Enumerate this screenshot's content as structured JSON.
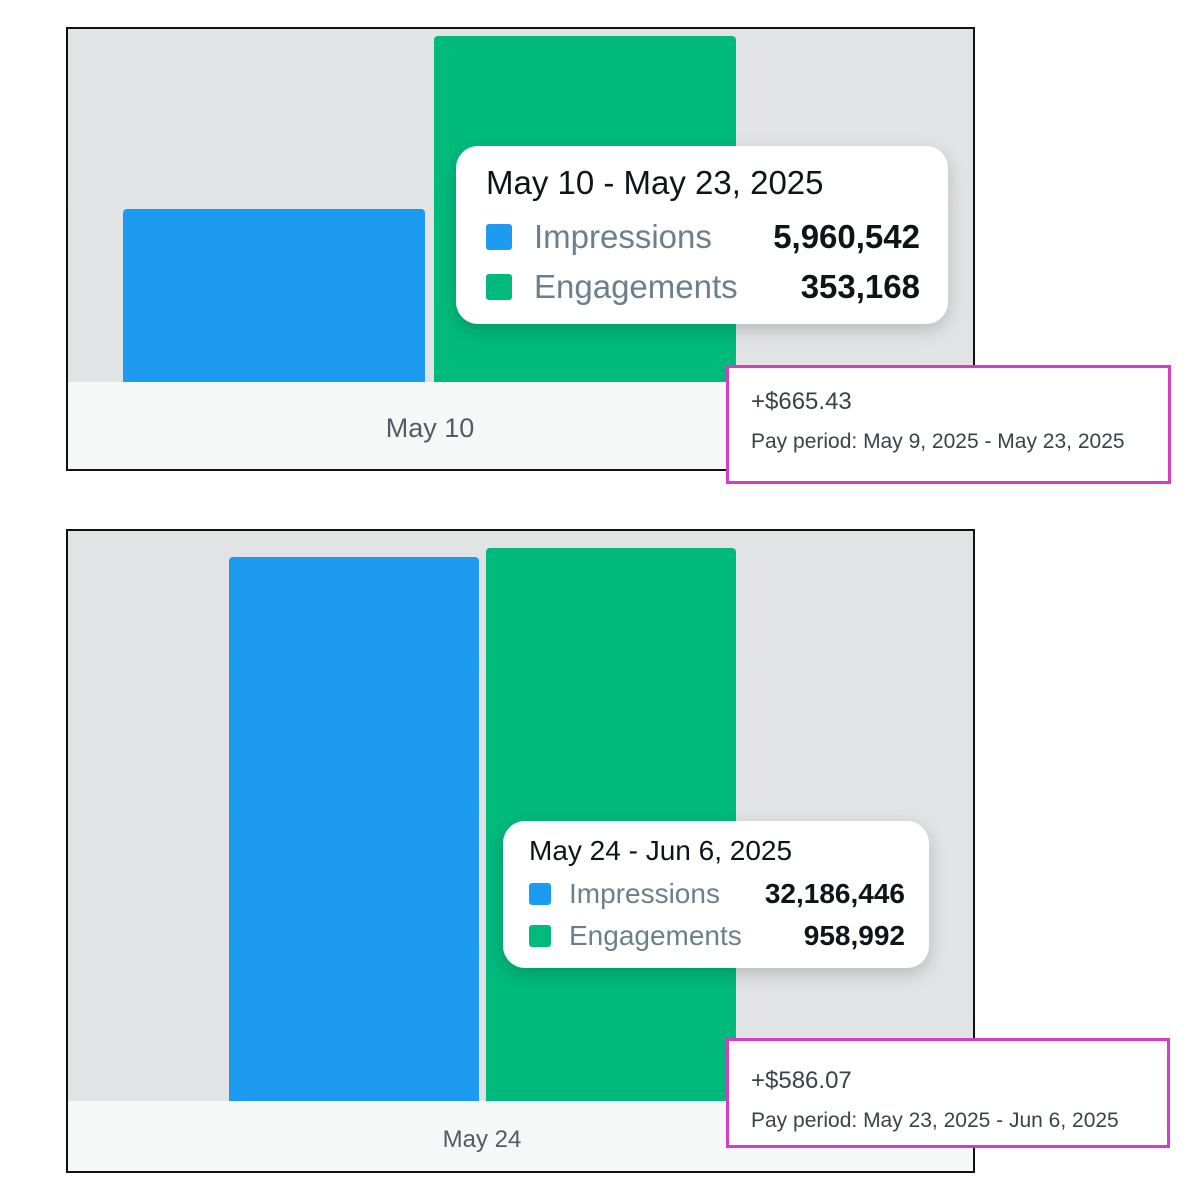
{
  "colors": {
    "impressions": "#1d9bf0",
    "engagements": "#00ba7c",
    "highlight_border": "#d63cc4"
  },
  "chart_data": [
    {
      "type": "bar",
      "categories": [
        "May 10"
      ],
      "series": [
        {
          "name": "Impressions",
          "values": [
            5960542
          ]
        },
        {
          "name": "Engagements",
          "values": [
            353168
          ]
        }
      ],
      "tooltip": {
        "title": "May 10 - May 23, 2025",
        "rows": [
          {
            "label": "Impressions",
            "value": "5,960,542"
          },
          {
            "label": "Engagements",
            "value": "353,168"
          }
        ]
      },
      "payout": {
        "amount": "+$665.43",
        "period": "Pay period: May 9, 2025 - May 23, 2025"
      },
      "bar_levels": {
        "impressions": 0.49,
        "engagements": 0.98
      },
      "grid": true
    },
    {
      "type": "bar",
      "categories": [
        "May 24"
      ],
      "series": [
        {
          "name": "Impressions",
          "values": [
            32186446
          ]
        },
        {
          "name": "Engagements",
          "values": [
            958992
          ]
        }
      ],
      "tooltip": {
        "title": "May 24 - Jun 6, 2025",
        "rows": [
          {
            "label": "Impressions",
            "value": "32,186,446"
          },
          {
            "label": "Engagements",
            "value": "958,992"
          }
        ]
      },
      "payout": {
        "amount": "+$586.07",
        "period": "Pay period: May 23, 2025 - Jun 6, 2025"
      },
      "bar_levels": {
        "impressions": 0.955,
        "engagements": 0.97
      },
      "grid": true
    }
  ]
}
